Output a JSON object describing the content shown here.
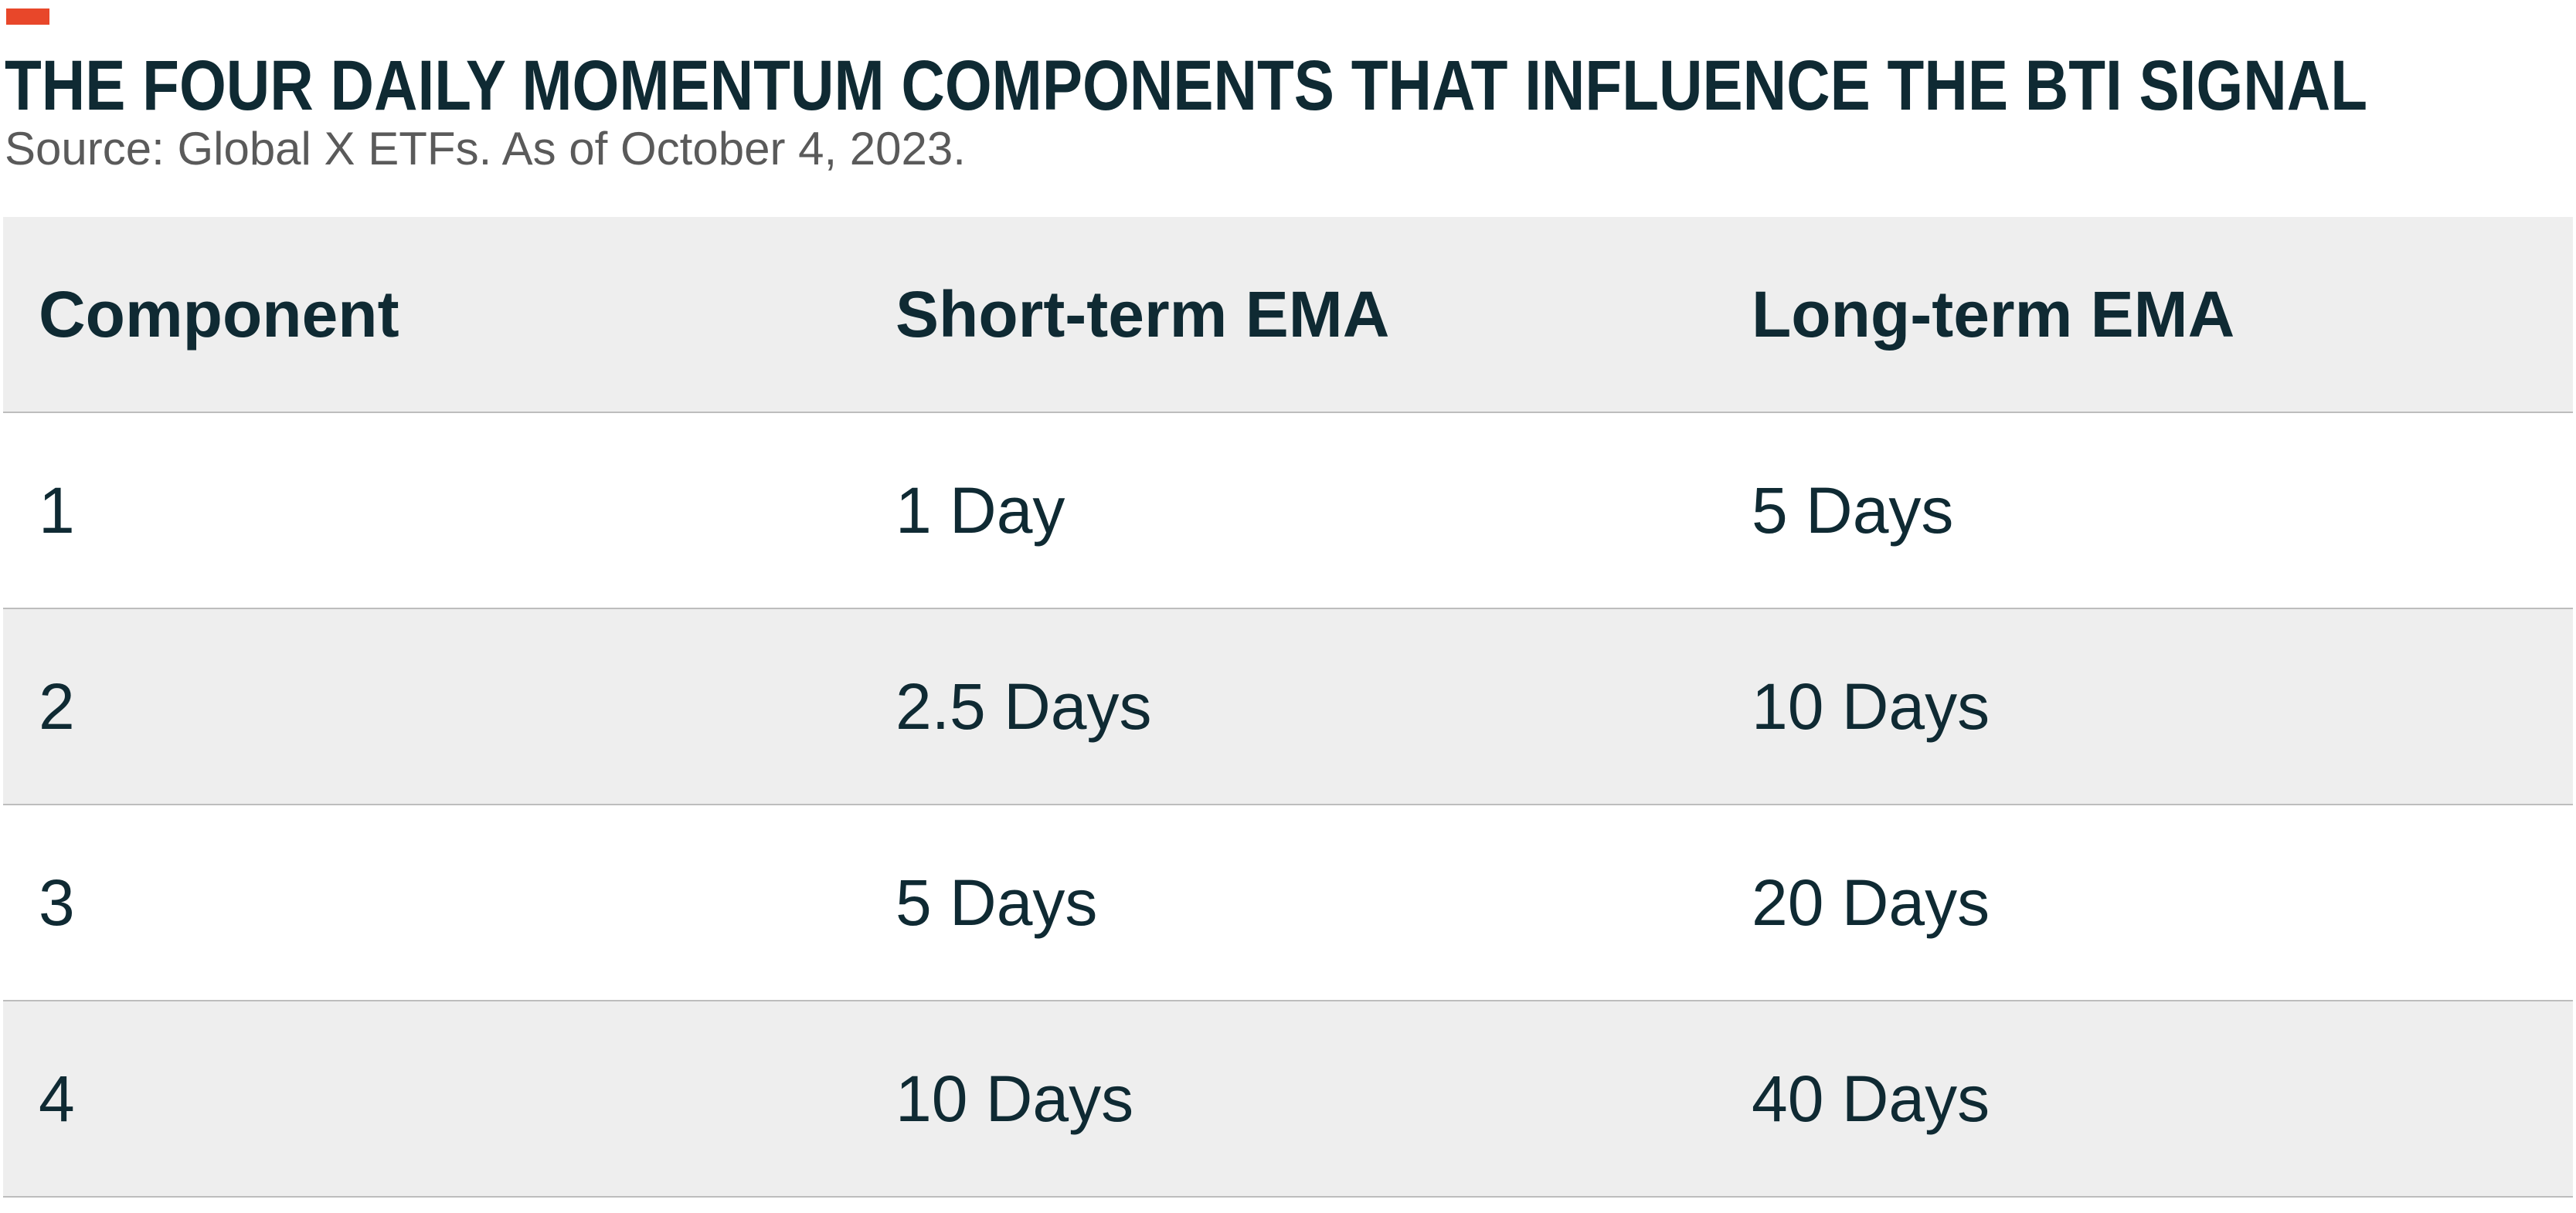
{
  "header": {
    "title": "THE FOUR DAILY MOMENTUM COMPONENTS THAT INFLUENCE THE BTI SIGNAL",
    "source": "Source: Global X ETFs. As of October 4, 2023."
  },
  "table": {
    "columns": [
      "Component",
      "Short-term EMA",
      "Long-term EMA"
    ],
    "rows": [
      [
        "1",
        "1 Day",
        "5 Days"
      ],
      [
        "2",
        "2.5 Days",
        "10 Days"
      ],
      [
        "3",
        "5 Days",
        "20 Days"
      ],
      [
        "4",
        "10 Days",
        "40 Days"
      ]
    ]
  }
}
